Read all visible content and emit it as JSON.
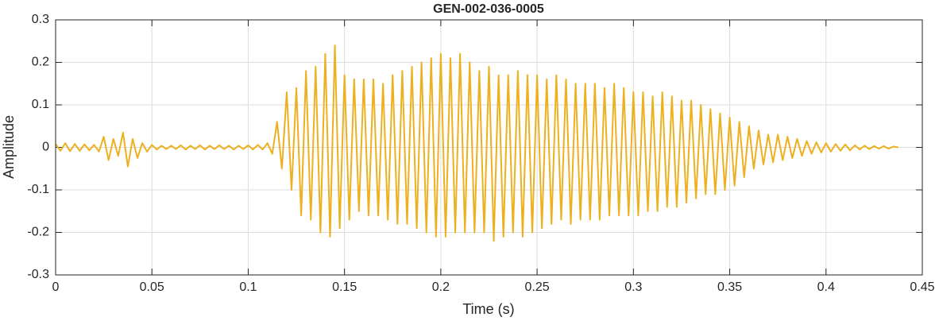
{
  "chart_data": {
    "type": "line",
    "title": "GEN-002-036-0005",
    "x_label": "Time (s)",
    "y_label": "Amplitude",
    "color": "#edb120",
    "grid": true,
    "xlim": [
      0,
      0.45
    ],
    "ylim": [
      -0.3,
      0.3
    ],
    "xticks": [
      0,
      0.05,
      0.1,
      0.15,
      0.2,
      0.25,
      0.3,
      0.35,
      0.4,
      0.45
    ],
    "yticks": [
      -0.3,
      -0.2,
      -0.1,
      0,
      0.1,
      0.2,
      0.3
    ],
    "x": [
      0,
      0.0025,
      0.005,
      0.0075,
      0.01,
      0.0125,
      0.015,
      0.0175,
      0.02,
      0.0225,
      0.025,
      0.0275,
      0.03,
      0.0325,
      0.035,
      0.0375,
      0.04,
      0.0425,
      0.045,
      0.0475,
      0.05,
      0.0525,
      0.055,
      0.0575,
      0.06,
      0.0625,
      0.065,
      0.0675,
      0.07,
      0.0725,
      0.075,
      0.0775,
      0.08,
      0.0825,
      0.085,
      0.0875,
      0.09,
      0.0925,
      0.095,
      0.0975,
      0.1,
      0.1025,
      0.105,
      0.1075,
      0.11,
      0.1125,
      0.115,
      0.1175,
      0.12,
      0.1225,
      0.125,
      0.1275,
      0.13,
      0.1325,
      0.135,
      0.1375,
      0.14,
      0.1425,
      0.145,
      0.1475,
      0.15,
      0.1525,
      0.155,
      0.1575,
      0.16,
      0.1625,
      0.165,
      0.1675,
      0.17,
      0.1725,
      0.175,
      0.1775,
      0.18,
      0.1825,
      0.185,
      0.1875,
      0.19,
      0.1925,
      0.195,
      0.1975,
      0.2,
      0.2025,
      0.205,
      0.2075,
      0.21,
      0.2125,
      0.215,
      0.2175,
      0.22,
      0.2225,
      0.225,
      0.2275,
      0.23,
      0.2325,
      0.235,
      0.2375,
      0.24,
      0.2425,
      0.245,
      0.2475,
      0.25,
      0.2525,
      0.255,
      0.2575,
      0.26,
      0.2625,
      0.265,
      0.2675,
      0.27,
      0.2725,
      0.275,
      0.2775,
      0.28,
      0.2825,
      0.285,
      0.2875,
      0.29,
      0.2925,
      0.295,
      0.2975,
      0.3,
      0.3025,
      0.305,
      0.3075,
      0.31,
      0.3125,
      0.315,
      0.3175,
      0.32,
      0.3225,
      0.325,
      0.3275,
      0.33,
      0.3325,
      0.335,
      0.3375,
      0.34,
      0.3425,
      0.345,
      0.3475,
      0.35,
      0.3525,
      0.355,
      0.3575,
      0.36,
      0.3625,
      0.365,
      0.3675,
      0.37,
      0.3725,
      0.375,
      0.3775,
      0.38,
      0.3825,
      0.385,
      0.3875,
      0.39,
      0.3925,
      0.395,
      0.3975,
      0.4,
      0.4025,
      0.405,
      0.4075,
      0.41,
      0.4125,
      0.415,
      0.4175,
      0.42,
      0.4225,
      0.425,
      0.4275,
      0.43,
      0.4325,
      0.435,
      0.4375
    ],
    "values": [
      0.008,
      -0.008,
      0.01,
      -0.009,
      0.008,
      -0.008,
      0.007,
      -0.007,
      0.006,
      -0.01,
      0.025,
      -0.03,
      0.02,
      -0.02,
      0.035,
      -0.045,
      0.02,
      -0.025,
      0.01,
      -0.01,
      0.006,
      -0.005,
      0.004,
      -0.004,
      0.004,
      -0.004,
      0.005,
      -0.005,
      0.004,
      -0.004,
      0.005,
      -0.005,
      0.004,
      -0.004,
      0.005,
      -0.004,
      0.004,
      -0.005,
      0.004,
      -0.004,
      0.005,
      -0.005,
      0.006,
      -0.005,
      0.01,
      -0.015,
      0.06,
      -0.05,
      0.13,
      -0.1,
      0.14,
      -0.16,
      0.18,
      -0.17,
      0.19,
      -0.2,
      0.22,
      -0.21,
      0.24,
      -0.19,
      0.17,
      -0.17,
      0.16,
      -0.15,
      0.16,
      -0.16,
      0.16,
      -0.16,
      0.15,
      -0.17,
      0.17,
      -0.18,
      0.18,
      -0.18,
      0.19,
      -0.19,
      0.2,
      -0.2,
      0.21,
      -0.21,
      0.22,
      -0.21,
      0.21,
      -0.2,
      0.22,
      -0.2,
      0.2,
      -0.2,
      0.18,
      -0.2,
      0.19,
      -0.22,
      0.17,
      -0.21,
      0.17,
      -0.2,
      0.18,
      -0.21,
      0.17,
      -0.2,
      0.17,
      -0.19,
      0.16,
      -0.18,
      0.17,
      -0.17,
      0.16,
      -0.18,
      0.15,
      -0.17,
      0.15,
      -0.17,
      0.15,
      -0.17,
      0.14,
      -0.16,
      0.15,
      -0.16,
      0.14,
      -0.16,
      0.13,
      -0.16,
      0.13,
      -0.15,
      0.12,
      -0.15,
      0.13,
      -0.14,
      0.12,
      -0.14,
      0.11,
      -0.13,
      0.11,
      -0.12,
      0.1,
      -0.11,
      0.09,
      -0.11,
      0.08,
      -0.1,
      0.07,
      -0.09,
      0.06,
      -0.07,
      0.05,
      -0.05,
      0.04,
      -0.04,
      0.03,
      -0.035,
      0.03,
      -0.03,
      0.025,
      -0.025,
      0.02,
      -0.02,
      0.015,
      -0.015,
      0.012,
      -0.012,
      0.01,
      -0.01,
      0.008,
      -0.008,
      0.007,
      -0.007,
      0.005,
      -0.005,
      0.004,
      -0.004,
      0.003,
      -0.003,
      0.003,
      -0.003,
      0.002,
      0
    ]
  }
}
